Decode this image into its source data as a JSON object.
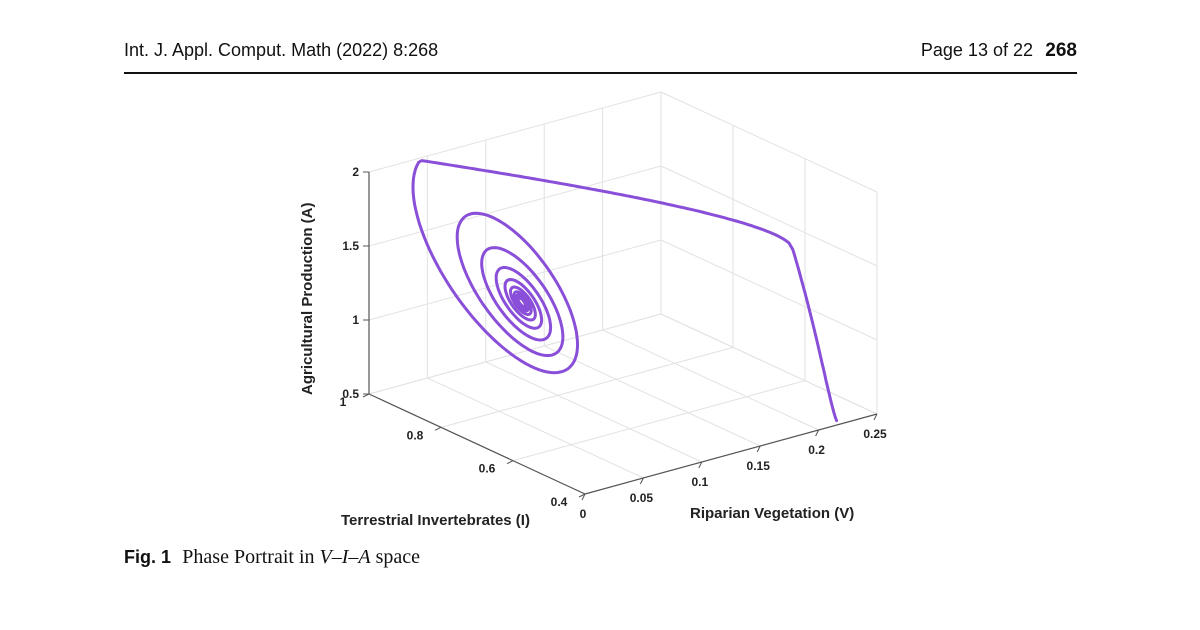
{
  "header": {
    "journal": "Int. J. Appl. Comput. Math (2022) 8:268",
    "page": "Page 13 of 22",
    "article_number": "268"
  },
  "caption": {
    "label": "Fig. 1",
    "text_prefix": "Phase Portrait in ",
    "var_v": "V",
    "dash1": "–",
    "var_i": "I",
    "dash2": "–",
    "var_a": "A",
    "text_suffix": " space"
  },
  "chart_data": {
    "type": "line",
    "projection": "3d",
    "title": "",
    "xlabel": "Riparian Vegetation (V)",
    "ylabel": "Terrestrial Invertebrates (I)",
    "zlabel": "Agricultural Production (A)",
    "xlim": [
      0,
      0.25
    ],
    "ylim": [
      0.4,
      1
    ],
    "zlim": [
      0.5,
      2
    ],
    "x_ticks": [
      "0",
      "0.05",
      "0.1",
      "0.15",
      "0.2",
      "0.25"
    ],
    "y_ticks": [
      "0.4",
      "0.6",
      "0.8",
      "1"
    ],
    "z_ticks": [
      "0.5",
      "1",
      "1.5",
      "2"
    ],
    "grid": true,
    "line_color": "#8a4fd8",
    "series": [
      {
        "kind": "spiral trajectory converging to interior equilibrium",
        "start": {
          "V": 0.2,
          "I": 0.35,
          "A": 0.62
        },
        "equilibrium": {
          "V": 0.06,
          "I": 0.77,
          "A": 1.25
        }
      }
    ]
  }
}
